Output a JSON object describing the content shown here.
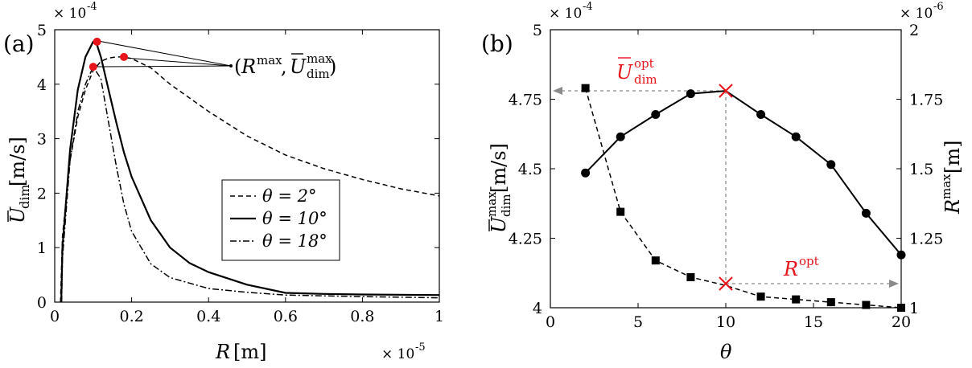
{
  "chart_data": [
    {
      "type": "line",
      "panel_label": "(a)",
      "xlabel": "R [m]",
      "ylabel": "Ū_dim[m/s]",
      "xlim": [
        0,
        1.0
      ],
      "ylim": [
        0,
        5
      ],
      "x_multiplier": "× 10^-5",
      "y_multiplier": "× 10^-4",
      "xticks": [
        "0",
        "0.2",
        "0.4",
        "0.6",
        "0.8",
        "1"
      ],
      "yticks": [
        "0",
        "1",
        "2",
        "3",
        "4",
        "5"
      ],
      "legend_position": "center-right",
      "annotation": "(R^max, Ū^max_dim)",
      "series": [
        {
          "name": "θ = 2°",
          "style": "dashed",
          "x": [
            0.015,
            0.02,
            0.04,
            0.06,
            0.08,
            0.1,
            0.12,
            0.14,
            0.16,
            0.18,
            0.2,
            0.25,
            0.3,
            0.4,
            0.5,
            0.6,
            0.7,
            0.8,
            0.9,
            1.0
          ],
          "y": [
            0,
            1.2,
            2.6,
            3.4,
            3.9,
            4.25,
            4.42,
            4.48,
            4.5,
            4.5,
            4.47,
            4.3,
            4.0,
            3.5,
            3.05,
            2.7,
            2.45,
            2.25,
            2.08,
            1.95
          ]
        },
        {
          "name": "θ = 10°",
          "style": "solid",
          "x": [
            0.017,
            0.02,
            0.04,
            0.06,
            0.08,
            0.1,
            0.11,
            0.12,
            0.14,
            0.16,
            0.18,
            0.2,
            0.25,
            0.3,
            0.35,
            0.4,
            0.5,
            0.6,
            0.7,
            0.8,
            1.0
          ],
          "y": [
            0,
            1.0,
            2.8,
            3.9,
            4.5,
            4.78,
            4.72,
            4.5,
            3.9,
            3.3,
            2.75,
            2.3,
            1.5,
            1.0,
            0.72,
            0.55,
            0.32,
            0.17,
            0.15,
            0.14,
            0.13
          ]
        },
        {
          "name": "θ = 18°",
          "style": "dashdot",
          "x": [
            0.018,
            0.02,
            0.04,
            0.06,
            0.08,
            0.1,
            0.12,
            0.14,
            0.16,
            0.18,
            0.2,
            0.25,
            0.3,
            0.4,
            0.5,
            0.6,
            0.8,
            1.0
          ],
          "y": [
            0,
            0.8,
            2.6,
            3.5,
            4.0,
            4.32,
            4.1,
            3.3,
            2.5,
            1.8,
            1.3,
            0.7,
            0.45,
            0.25,
            0.18,
            0.13,
            0.1,
            0.08
          ]
        }
      ],
      "highlight_points": [
        {
          "x": 0.18,
          "y": 4.5
        },
        {
          "x": 0.11,
          "y": 4.78
        },
        {
          "x": 0.1,
          "y": 4.32
        }
      ]
    },
    {
      "type": "line",
      "panel_label": "(b)",
      "xlabel": "θ",
      "ylabel_left": "Ū^max_dim[m/s]",
      "ylabel_right": "R^max[m]",
      "xlim": [
        0,
        20
      ],
      "ylim_left": [
        4.0,
        5.0
      ],
      "ylim_right": [
        1.0,
        2.0
      ],
      "y_multiplier_left": "× 10^-4",
      "y_multiplier_right": "× 10^-6",
      "xticks": [
        "0",
        "5",
        "10",
        "15",
        "20"
      ],
      "yticks_left": [
        "4",
        "4.25",
        "4.5",
        "4.75",
        "5"
      ],
      "yticks_right": [
        "1",
        "1.25",
        "1.5",
        "1.75",
        "2"
      ],
      "annotations": [
        "Ū^opt_dim",
        "R^opt"
      ],
      "series": [
        {
          "name": "Ū^max_dim",
          "axis": "left",
          "style": "solid",
          "marker": "circle",
          "x": [
            2,
            4,
            6,
            8,
            10,
            12,
            14,
            16,
            18,
            20
          ],
          "y": [
            4.485,
            4.615,
            4.695,
            4.77,
            4.78,
            4.695,
            4.615,
            4.515,
            4.34,
            4.19
          ]
        },
        {
          "name": "R^max",
          "axis": "right",
          "style": "dashed",
          "marker": "square",
          "x": [
            2,
            4,
            6,
            8,
            10,
            12,
            14,
            16,
            18,
            20
          ],
          "y": [
            1.79,
            1.345,
            1.17,
            1.11,
            1.08,
            1.04,
            1.03,
            1.02,
            1.01,
            1.0
          ]
        }
      ],
      "optimum": {
        "x": 10,
        "y_left": 4.78,
        "y_right": 1.08
      }
    }
  ]
}
